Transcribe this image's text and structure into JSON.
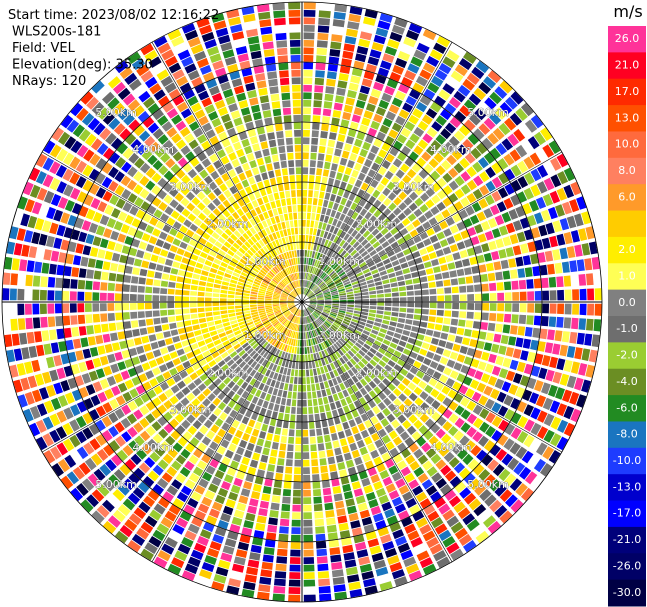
{
  "header": {
    "lines": [
      "Start time: 2023/08/02 12:16:22",
      "WLS200s-181",
      "Field: VEL",
      "Elevation(deg): 35.30",
      "NRays: 120"
    ]
  },
  "range_rings": [
    "1.00km",
    "2.00km",
    "3.00km",
    "4.00km",
    "5.00km"
  ],
  "colorbar": {
    "unit": "m/s",
    "ticks": [
      {
        "value": 26,
        "label": "26.0"
      },
      {
        "value": 21,
        "label": "21.0"
      },
      {
        "value": 17,
        "label": "17.0"
      },
      {
        "value": 13,
        "label": "13.0"
      },
      {
        "value": 10,
        "label": "10.0"
      },
      {
        "value": 8,
        "label": "8.0"
      },
      {
        "value": 6,
        "label": "6.0"
      },
      null,
      {
        "value": 2,
        "label": "2.0"
      },
      {
        "value": 1,
        "label": "1.0"
      },
      {
        "value": 0,
        "label": "0.0"
      },
      {
        "value": -1,
        "label": "-1.0"
      },
      {
        "value": -2,
        "label": "-2.0"
      },
      {
        "value": -4,
        "label": "-4.0"
      },
      {
        "value": -6,
        "label": "-6.0"
      },
      {
        "value": -8,
        "label": "-8.0"
      },
      {
        "value": -10,
        "label": "-10.0"
      },
      {
        "value": -13,
        "label": "-13.0"
      },
      {
        "value": -17,
        "label": "-17.0"
      },
      {
        "value": -21,
        "label": "-21.0"
      },
      {
        "value": -26,
        "label": "-26.0"
      },
      {
        "value": -30,
        "label": "-30.0"
      }
    ],
    "colors": [
      "#ff3399",
      "#ff0022",
      "#ff2a00",
      "#ff5000",
      "#ff6a3d",
      "#ff8060",
      "#ff9a2a",
      "#ffcc00",
      "#ffee00",
      "#ffff55",
      "#808080",
      "#6e6e6e",
      "#9acd32",
      "#6b8e23",
      "#228b22",
      "#1a75c0",
      "#1e3cff",
      "#0000cd",
      "#0000ff",
      "#00007a",
      "#000066",
      "#000044"
    ]
  }
}
